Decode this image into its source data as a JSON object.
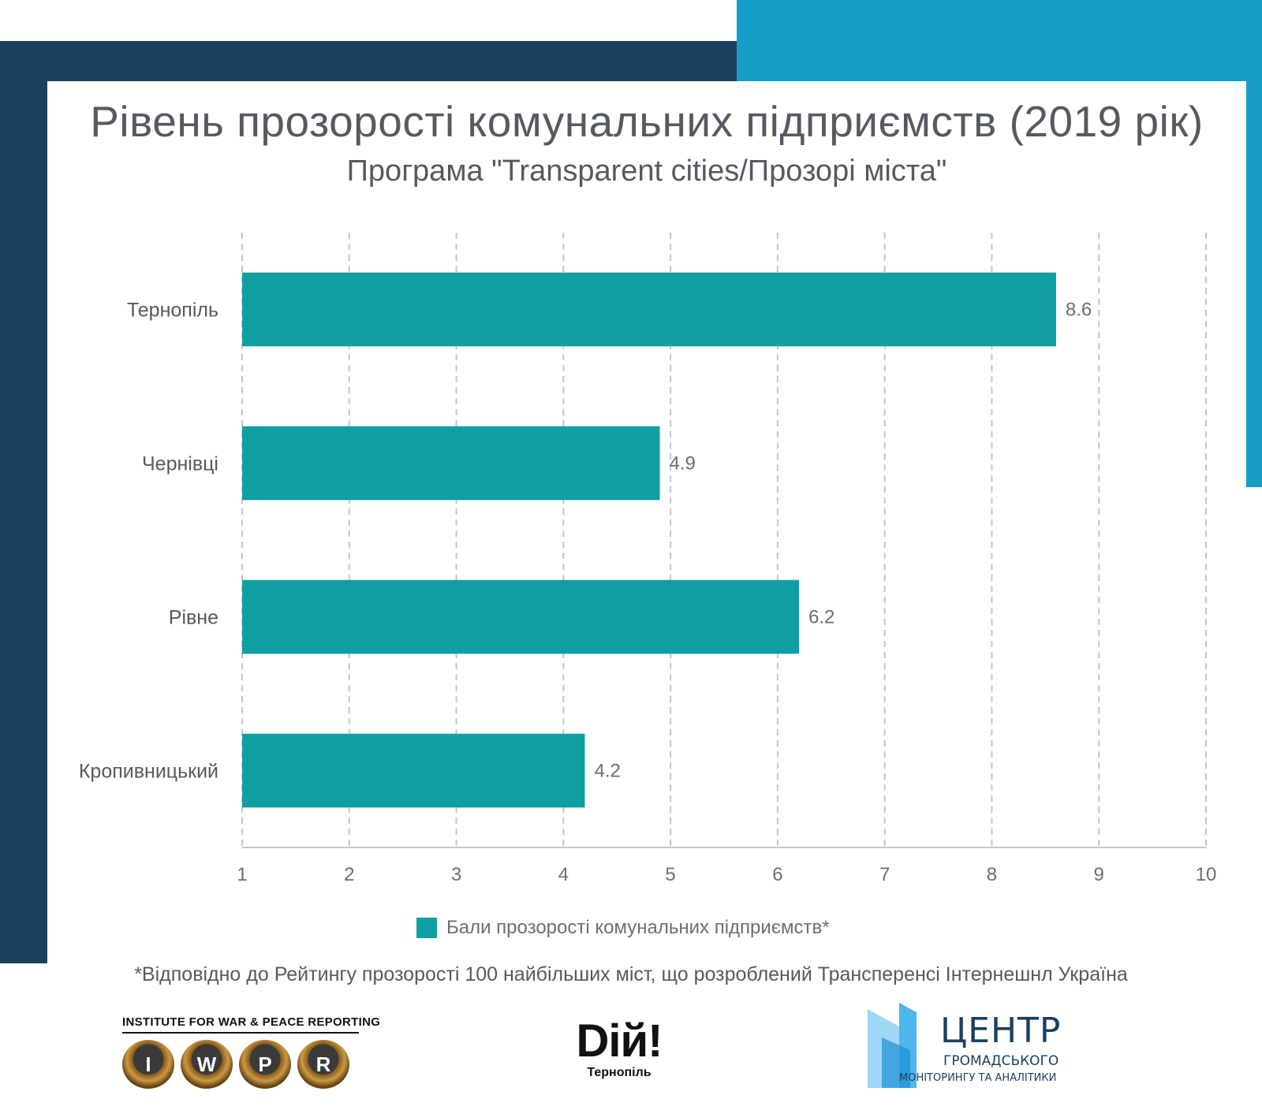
{
  "chart_data": {
    "type": "bar",
    "orientation": "horizontal",
    "title": "Рівень прозорості комунальних підприємств (2019 рік)",
    "subtitle": "Програма \"Transparent cities/Прозорі міста\"",
    "categories": [
      "Тернопіль",
      "Чернівці",
      "Рівне",
      "Кропивницький"
    ],
    "series": [
      {
        "name": "Бали прозорості комунальних підприємств*",
        "values": [
          8.6,
          4.9,
          6.2,
          4.2
        ],
        "color": "#0f9ea1"
      }
    ],
    "data_labels": [
      "8.6",
      "4.9",
      "6.2",
      "4.2"
    ],
    "x_ticks": [
      "1",
      "2",
      "3",
      "4",
      "5",
      "6",
      "7",
      "8",
      "9",
      "10"
    ],
    "xlim": [
      1,
      10
    ],
    "grid": "vertical dashed",
    "legend_position": "bottom"
  },
  "footnote": "*Відповідно до Рейтингу прозорості 100 найбільших міст, що розроблений Трансперенсі Інтернешнл Україна",
  "logos": {
    "iwpr": {
      "name": "INSTITUTE FOR WAR & PEACE REPORTING",
      "keys": [
        "I",
        "W",
        "P",
        "R"
      ]
    },
    "diy": {
      "mark": "Dій!",
      "city": "Тернопіль"
    },
    "centre": {
      "line1": "ЦЕНТР",
      "line2": "ГРОМАДСЬКОГО",
      "line3": "МОНІТОРИНГУ ТА АНАЛІТИКИ"
    }
  },
  "colors": {
    "dark_band": "#1b3f5f",
    "teal_band": "#159fc6",
    "bar": "#0f9ea1"
  }
}
